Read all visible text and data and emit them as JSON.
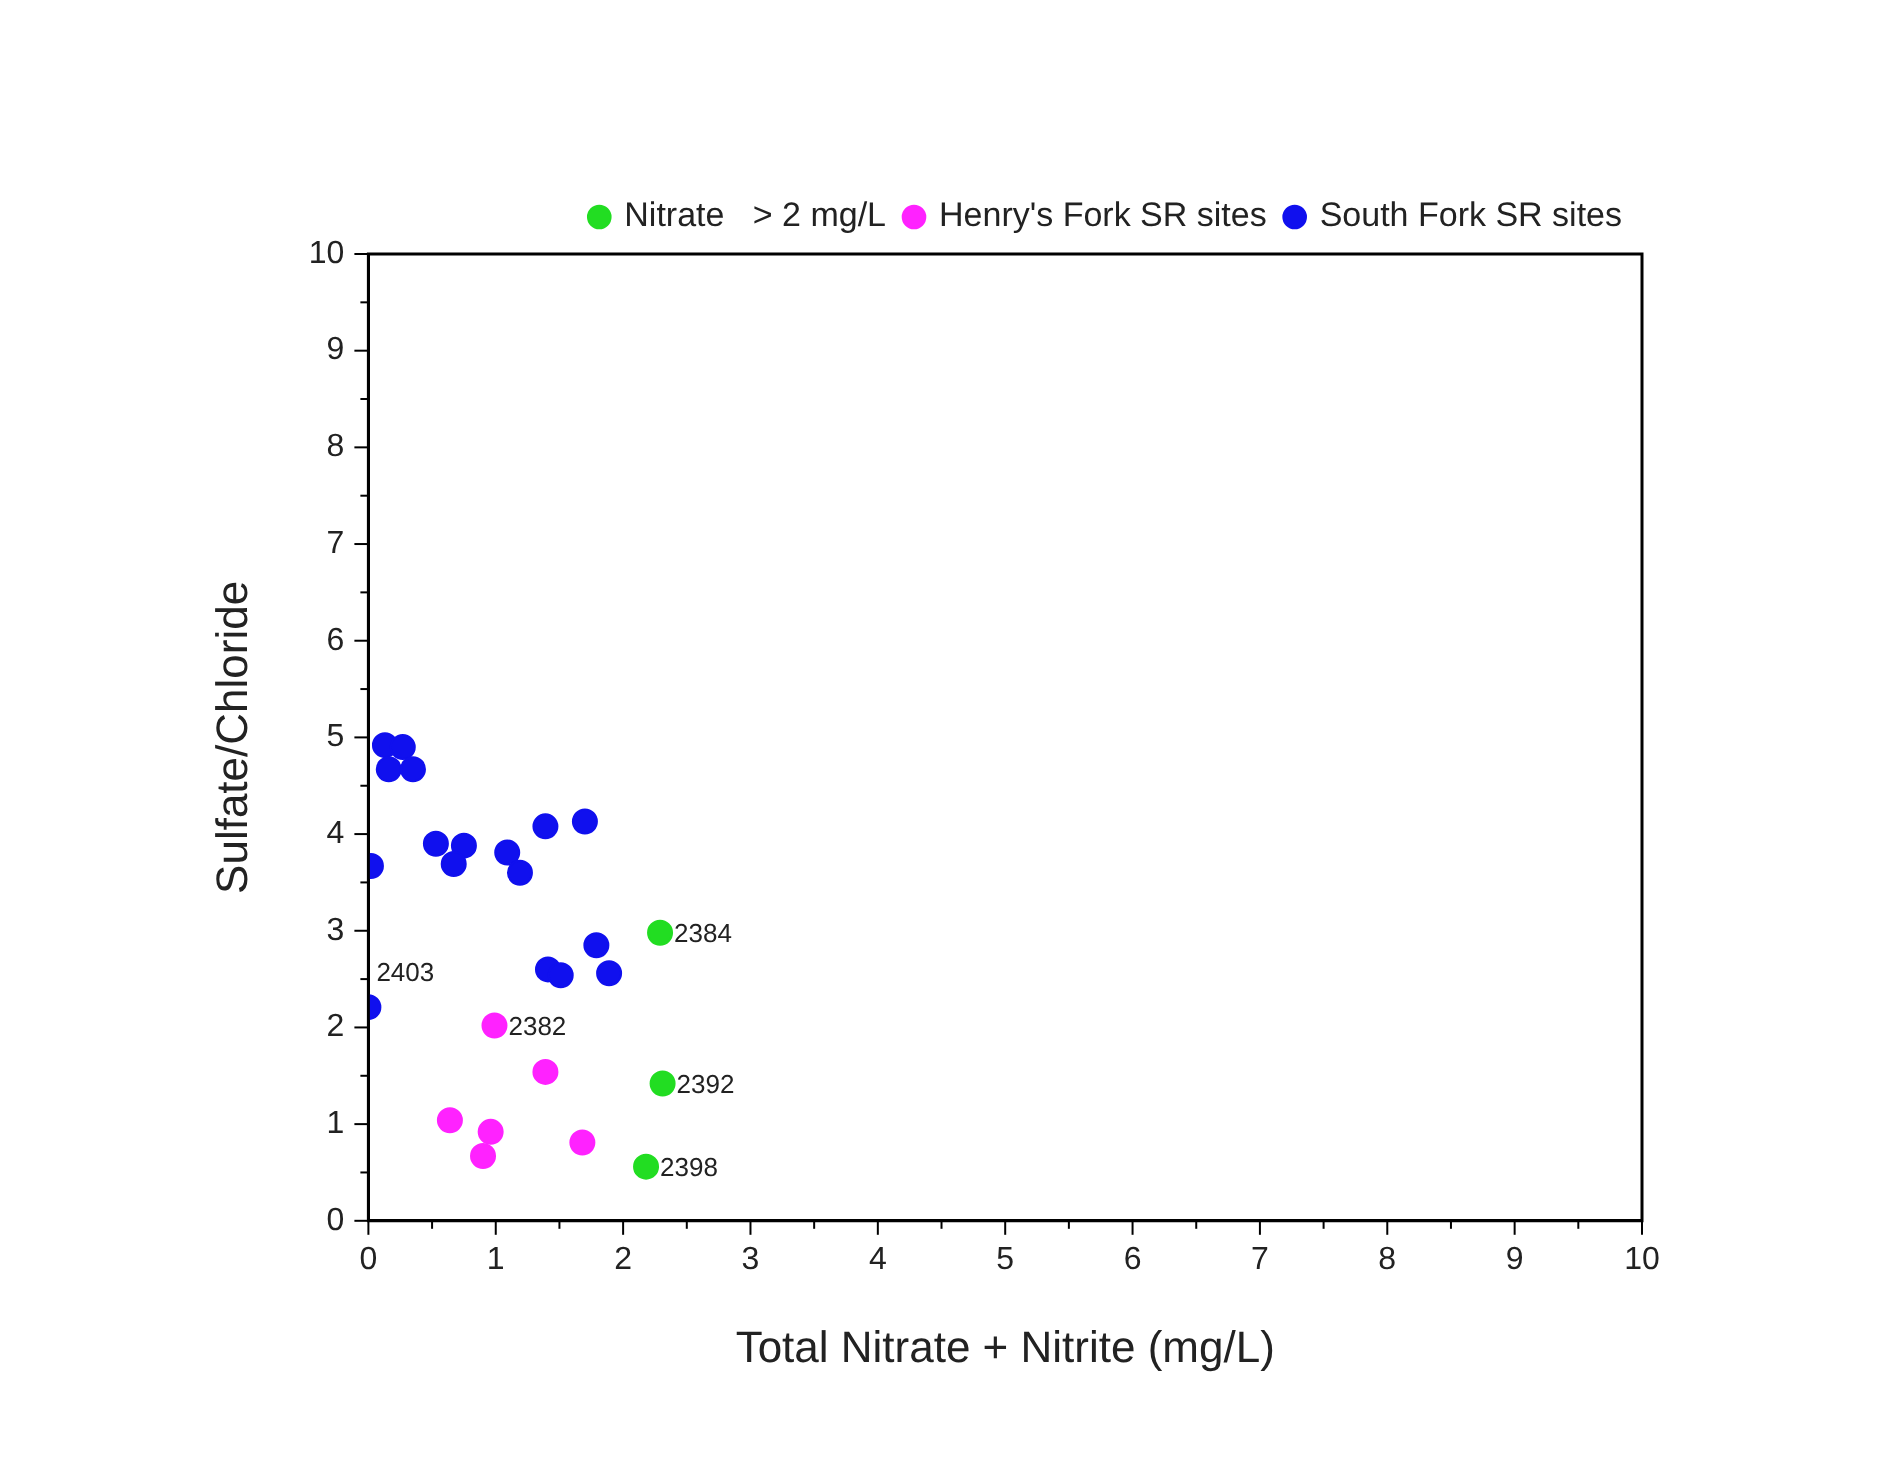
{
  "chart_data": {
    "type": "scatter",
    "xlabel": "Total Nitrate + Nitrite (mg/L)",
    "ylabel": "Sulfate/Chloride",
    "xlim": [
      0,
      10
    ],
    "ylim": [
      0,
      10
    ],
    "xticks": [
      0,
      {
        "value": 0.5,
        "label": null
      },
      1,
      {
        "value": 1.5,
        "label": null
      },
      2,
      {
        "value": 2.5,
        "label": null
      },
      3,
      {
        "value": 3.5,
        "label": null
      },
      4,
      {
        "value": 4.5,
        "label": null
      },
      5,
      {
        "value": 5.5,
        "label": null
      },
      6,
      {
        "value": 6.5,
        "label": null
      },
      7,
      {
        "value": 7.5,
        "label": null
      },
      8,
      {
        "value": 8.5,
        "label": null
      },
      9,
      {
        "value": 9.5,
        "label": null
      },
      10
    ],
    "yticks": [
      0,
      {
        "value": 0.5,
        "label": null
      },
      1,
      {
        "value": 1.5,
        "label": null
      },
      2,
      {
        "value": 2.5,
        "label": null
      },
      3,
      {
        "value": 3.5,
        "label": null
      },
      4,
      {
        "value": 4.5,
        "label": null
      },
      5,
      {
        "value": 5.5,
        "label": null
      },
      6,
      {
        "value": 6.5,
        "label": null
      },
      7,
      {
        "value": 7.5,
        "label": null
      },
      8,
      {
        "value": 8.5,
        "label": null
      },
      9,
      {
        "value": 9.5,
        "label": null
      },
      10
    ],
    "grid": false,
    "legend": "top right",
    "marker": "circle",
    "series": [
      {
        "name": "Nitrate   > 2 mg/L",
        "color": "#22dd22",
        "x": [
          2.29,
          2.31,
          2.18
        ],
        "values": [
          2.98,
          1.42,
          0.56
        ]
      },
      {
        "name": "Henry's Fork SR sites",
        "color": "#ff22ff",
        "x": [
          0.99,
          1.39,
          0.64,
          0.96,
          0.9,
          1.68
        ],
        "values": [
          2.02,
          1.54,
          1.04,
          0.92,
          0.67,
          0.81
        ]
      },
      {
        "name": "South Fork SR sites",
        "color": "#1010ee",
        "x": [
          0.13,
          0.27,
          0.16,
          0.35,
          0.02,
          0.53,
          0.75,
          0.67,
          1.09,
          1.19,
          1.39,
          1.7,
          1.79,
          1.41,
          1.51,
          1.89,
          0
        ],
        "values": [
          4.92,
          4.9,
          4.67,
          4.67,
          3.67,
          3.9,
          3.88,
          3.69,
          3.81,
          3.6,
          4.08,
          4.13,
          2.85,
          2.6,
          2.54,
          2.56,
          2.21
        ]
      }
    ],
    "annotations": [
      {
        "text": "2384",
        "x": 2.29,
        "y": 2.98
      },
      {
        "text": "2392",
        "x": 2.31,
        "y": 1.42
      },
      {
        "text": "2398",
        "x": 2.18,
        "y": 0.56
      },
      {
        "text": "2382",
        "x": 0.99,
        "y": 2.02
      },
      {
        "text": "2403",
        "x": 0,
        "y": 2.21
      }
    ]
  }
}
